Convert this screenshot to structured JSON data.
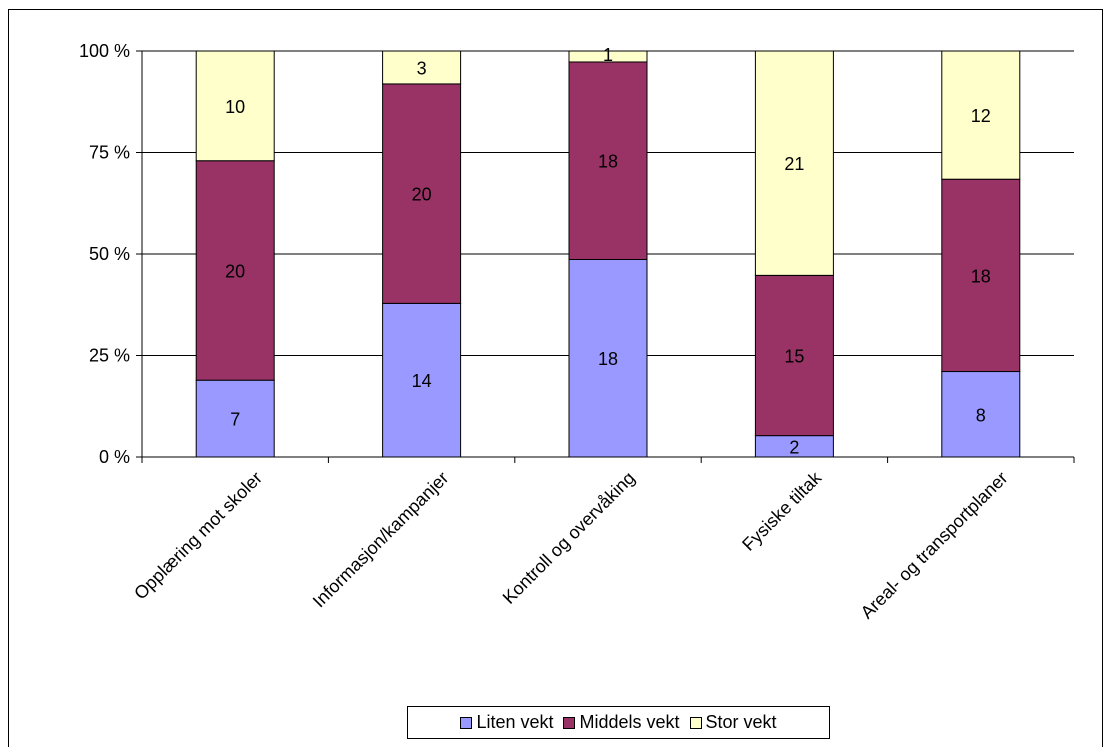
{
  "chart_data": {
    "type": "bar",
    "stacked": "percent",
    "categories": [
      "Opplæring mot skoler",
      "Informasjon/kampanjer",
      "Kontroll og overvåking",
      "Fysiske tiltak",
      "Areal- og transportplaner"
    ],
    "series": [
      {
        "name": "Liten vekt",
        "values": [
          7,
          14,
          18,
          2,
          8
        ],
        "color": "#9999ff"
      },
      {
        "name": "Middels vekt",
        "values": [
          20,
          20,
          18,
          15,
          18
        ],
        "color": "#993366"
      },
      {
        "name": "Stor vekt",
        "values": [
          10,
          3,
          1,
          21,
          12
        ],
        "color": "#ffffcc"
      }
    ],
    "y_ticks": [
      "0 %",
      "25 %",
      "50 %",
      "75 %",
      "100 %"
    ],
    "ylim": [
      0,
      100
    ],
    "grid": true,
    "legend_position": "bottom"
  }
}
